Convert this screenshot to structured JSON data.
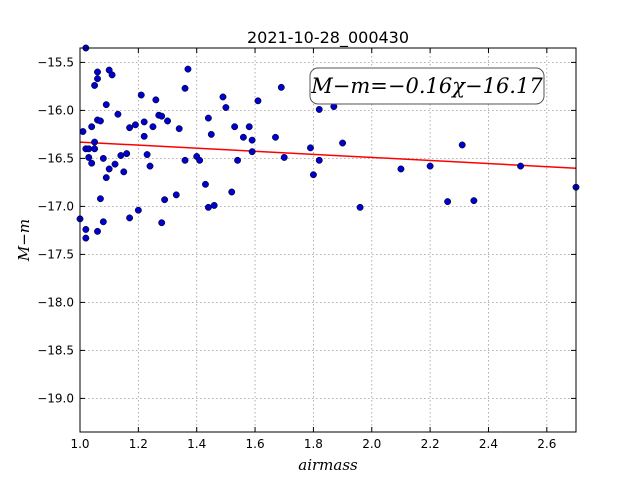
{
  "chart_data": {
    "type": "scatter",
    "title": "2021-10-28_000430",
    "xlabel": "airmass",
    "ylabel": "M−m",
    "xlim": [
      1.0,
      2.7
    ],
    "ylim": [
      -19.35,
      -15.35
    ],
    "y_inverted": true,
    "grid": true,
    "x_ticks": [
      "1.0",
      "1.2",
      "1.4",
      "1.6",
      "1.8",
      "2.0",
      "2.2",
      "2.4",
      "2.6"
    ],
    "y_ticks": [
      "−15.5",
      "−16.0",
      "−16.5",
      "−17.0",
      "−17.5",
      "−18.0",
      "−18.5",
      "−19.0"
    ],
    "x_tick_values": [
      1.0,
      1.2,
      1.4,
      1.6,
      1.8,
      2.0,
      2.2,
      2.4,
      2.6
    ],
    "y_tick_values": [
      -15.5,
      -16.0,
      -16.5,
      -17.0,
      -17.5,
      -18.0,
      -18.5,
      -19.0
    ],
    "annotation": "M−m=−0.16χ−16.17",
    "fit_line": {
      "slope": -0.16,
      "intercept": -16.17,
      "color": "#ff0000"
    },
    "point_color": "#0000cc",
    "series": [
      {
        "points": [
          [
            1.0,
            -17.13
          ],
          [
            1.01,
            -16.22
          ],
          [
            1.02,
            -16.4
          ],
          [
            1.02,
            -15.35
          ],
          [
            1.02,
            -17.24
          ],
          [
            1.02,
            -17.33
          ],
          [
            1.03,
            -16.49
          ],
          [
            1.03,
            -16.4
          ],
          [
            1.04,
            -16.17
          ],
          [
            1.04,
            -16.55
          ],
          [
            1.05,
            -16.4
          ],
          [
            1.05,
            -15.74
          ],
          [
            1.05,
            -16.33
          ],
          [
            1.06,
            -16.1
          ],
          [
            1.06,
            -15.6
          ],
          [
            1.06,
            -15.67
          ],
          [
            1.06,
            -17.26
          ],
          [
            1.07,
            -16.11
          ],
          [
            1.07,
            -16.92
          ],
          [
            1.08,
            -16.5
          ],
          [
            1.08,
            -17.16
          ],
          [
            1.09,
            -16.7
          ],
          [
            1.09,
            -15.94
          ],
          [
            1.1,
            -16.61
          ],
          [
            1.1,
            -15.58
          ],
          [
            1.11,
            -15.63
          ],
          [
            1.12,
            -16.56
          ],
          [
            1.13,
            -16.04
          ],
          [
            1.14,
            -16.47
          ],
          [
            1.15,
            -16.64
          ],
          [
            1.16,
            -16.45
          ],
          [
            1.17,
            -16.18
          ],
          [
            1.17,
            -17.12
          ],
          [
            1.19,
            -16.15
          ],
          [
            1.2,
            -17.04
          ],
          [
            1.21,
            -15.84
          ],
          [
            1.22,
            -16.27
          ],
          [
            1.22,
            -16.12
          ],
          [
            1.23,
            -16.46
          ],
          [
            1.24,
            -16.58
          ],
          [
            1.25,
            -16.17
          ],
          [
            1.26,
            -15.89
          ],
          [
            1.27,
            -16.05
          ],
          [
            1.28,
            -16.06
          ],
          [
            1.28,
            -17.17
          ],
          [
            1.29,
            -16.93
          ],
          [
            1.3,
            -16.11
          ],
          [
            1.33,
            -16.88
          ],
          [
            1.34,
            -16.19
          ],
          [
            1.36,
            -15.77
          ],
          [
            1.36,
            -16.52
          ],
          [
            1.37,
            -15.57
          ],
          [
            1.4,
            -16.48
          ],
          [
            1.41,
            -16.52
          ],
          [
            1.43,
            -16.77
          ],
          [
            1.44,
            -17.01
          ],
          [
            1.44,
            -16.08
          ],
          [
            1.45,
            -16.25
          ],
          [
            1.46,
            -16.99
          ],
          [
            1.49,
            -15.86
          ],
          [
            1.5,
            -15.97
          ],
          [
            1.52,
            -16.85
          ],
          [
            1.53,
            -16.17
          ],
          [
            1.54,
            -16.52
          ],
          [
            1.56,
            -16.28
          ],
          [
            1.58,
            -16.17
          ],
          [
            1.59,
            -16.43
          ],
          [
            1.59,
            -16.31
          ],
          [
            1.61,
            -15.9
          ],
          [
            1.67,
            -16.28
          ],
          [
            1.69,
            -15.76
          ],
          [
            1.7,
            -16.49
          ],
          [
            1.79,
            -16.39
          ],
          [
            1.8,
            -16.67
          ],
          [
            1.82,
            -15.99
          ],
          [
            1.82,
            -16.52
          ],
          [
            1.87,
            -15.96
          ],
          [
            1.9,
            -16.34
          ],
          [
            1.96,
            -17.01
          ],
          [
            2.1,
            -16.61
          ],
          [
            2.2,
            -16.58
          ],
          [
            2.26,
            -16.95
          ],
          [
            2.31,
            -16.36
          ],
          [
            2.35,
            -16.94
          ],
          [
            2.51,
            -16.58
          ],
          [
            2.7,
            -16.8
          ]
        ]
      }
    ]
  }
}
